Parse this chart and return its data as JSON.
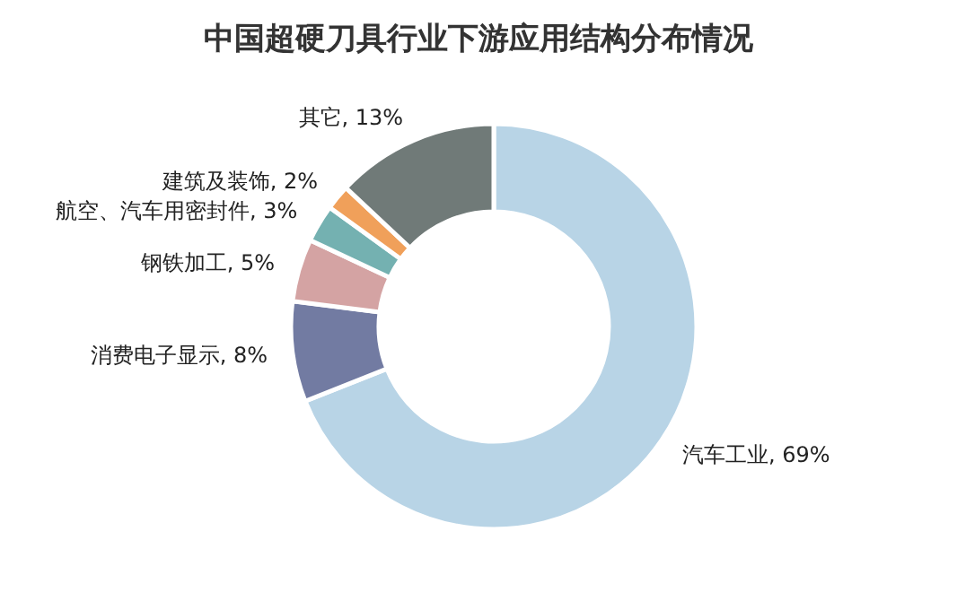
{
  "chart_data": {
    "type": "donut",
    "title": "中国超硬刀具行业下游应用结构分布情况",
    "categories": [
      "汽车工业",
      "消费电子显示",
      "钢铁加工",
      "航空、汽车用密封件",
      "建筑及装饰",
      "其它"
    ],
    "values": [
      69,
      8,
      5,
      3,
      2,
      13
    ],
    "value_labels": [
      "69%",
      "8%",
      "5%",
      "3%",
      "2%",
      "13%"
    ],
    "colors": [
      "#b8d4e6",
      "#727ba2",
      "#d4a3a3",
      "#74b1b1",
      "#f0a05a",
      "#707a78"
    ]
  }
}
